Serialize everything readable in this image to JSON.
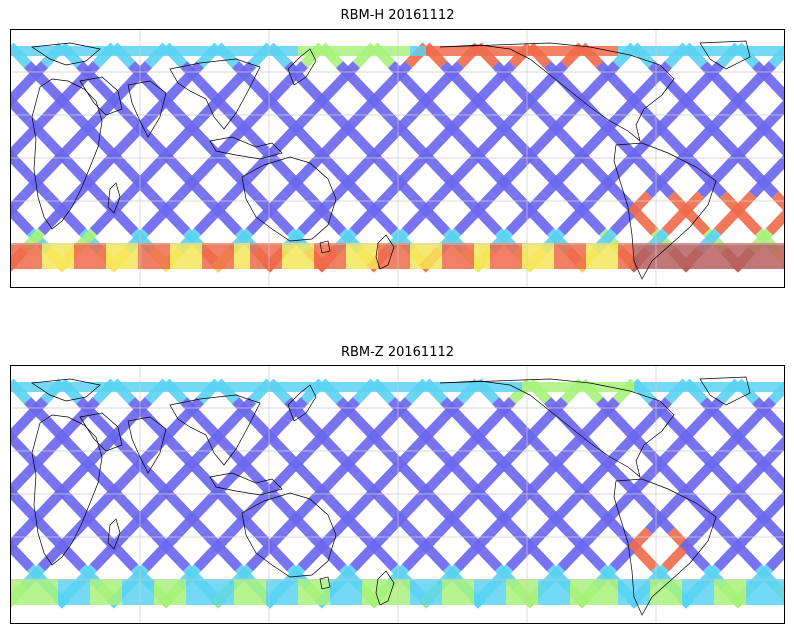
{
  "panels": [
    {
      "title": "RBM-H 20161112"
    },
    {
      "title": "RBM-Z 20161112"
    }
  ],
  "colors": {
    "swath_low": "#6a66ee",
    "swath_mid": "#5ad2f2",
    "swath_midhigh": "#a8f27a",
    "swath_high": "#f6e65a",
    "swath_peak": "#ef6a4a",
    "swath_extreme": "#b86060",
    "coast": "#000000",
    "grid": "#cccccc",
    "frame": "#000000",
    "background": "#ffffff"
  }
}
